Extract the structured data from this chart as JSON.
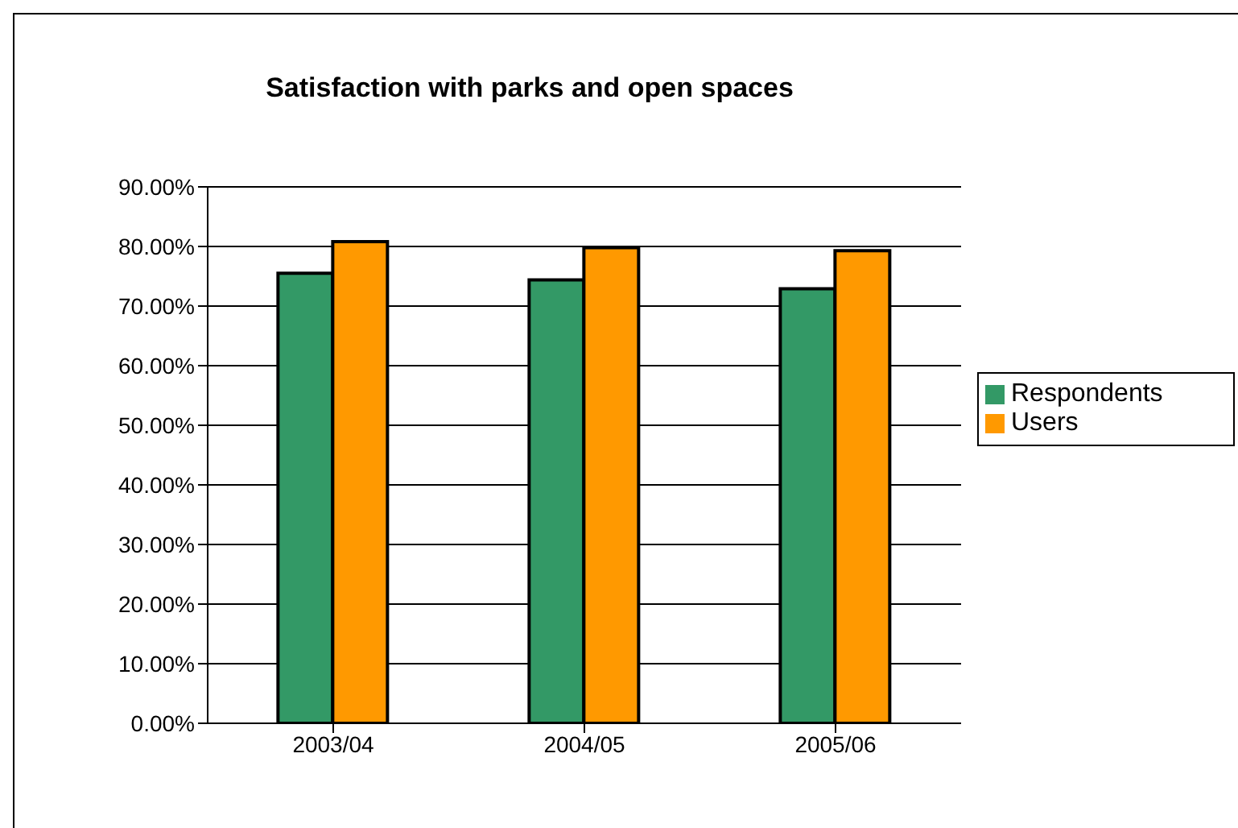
{
  "chart_data": {
    "type": "bar",
    "title": "Satisfaction with parks and open spaces",
    "categories": [
      "2003/04",
      "2004/05",
      "2005/06"
    ],
    "series": [
      {
        "name": "Respondents",
        "color": "#339966",
        "values": [
          75.5,
          74.4,
          72.9
        ]
      },
      {
        "name": "Users",
        "color": "#ff9900",
        "values": [
          80.8,
          79.8,
          79.3
        ]
      }
    ],
    "ylim": [
      0,
      90
    ],
    "yticks": [
      {
        "value": 0,
        "label": "0.00%"
      },
      {
        "value": 10,
        "label": "10.00%"
      },
      {
        "value": 20,
        "label": "20.00%"
      },
      {
        "value": 30,
        "label": "30.00%"
      },
      {
        "value": 40,
        "label": "40.00%"
      },
      {
        "value": 50,
        "label": "50.00%"
      },
      {
        "value": 60,
        "label": "60.00%"
      },
      {
        "value": 70,
        "label": "70.00%"
      },
      {
        "value": 80,
        "label": "80.00%"
      },
      {
        "value": 90,
        "label": "90.00%"
      }
    ],
    "grid": "y",
    "legend": "right"
  }
}
